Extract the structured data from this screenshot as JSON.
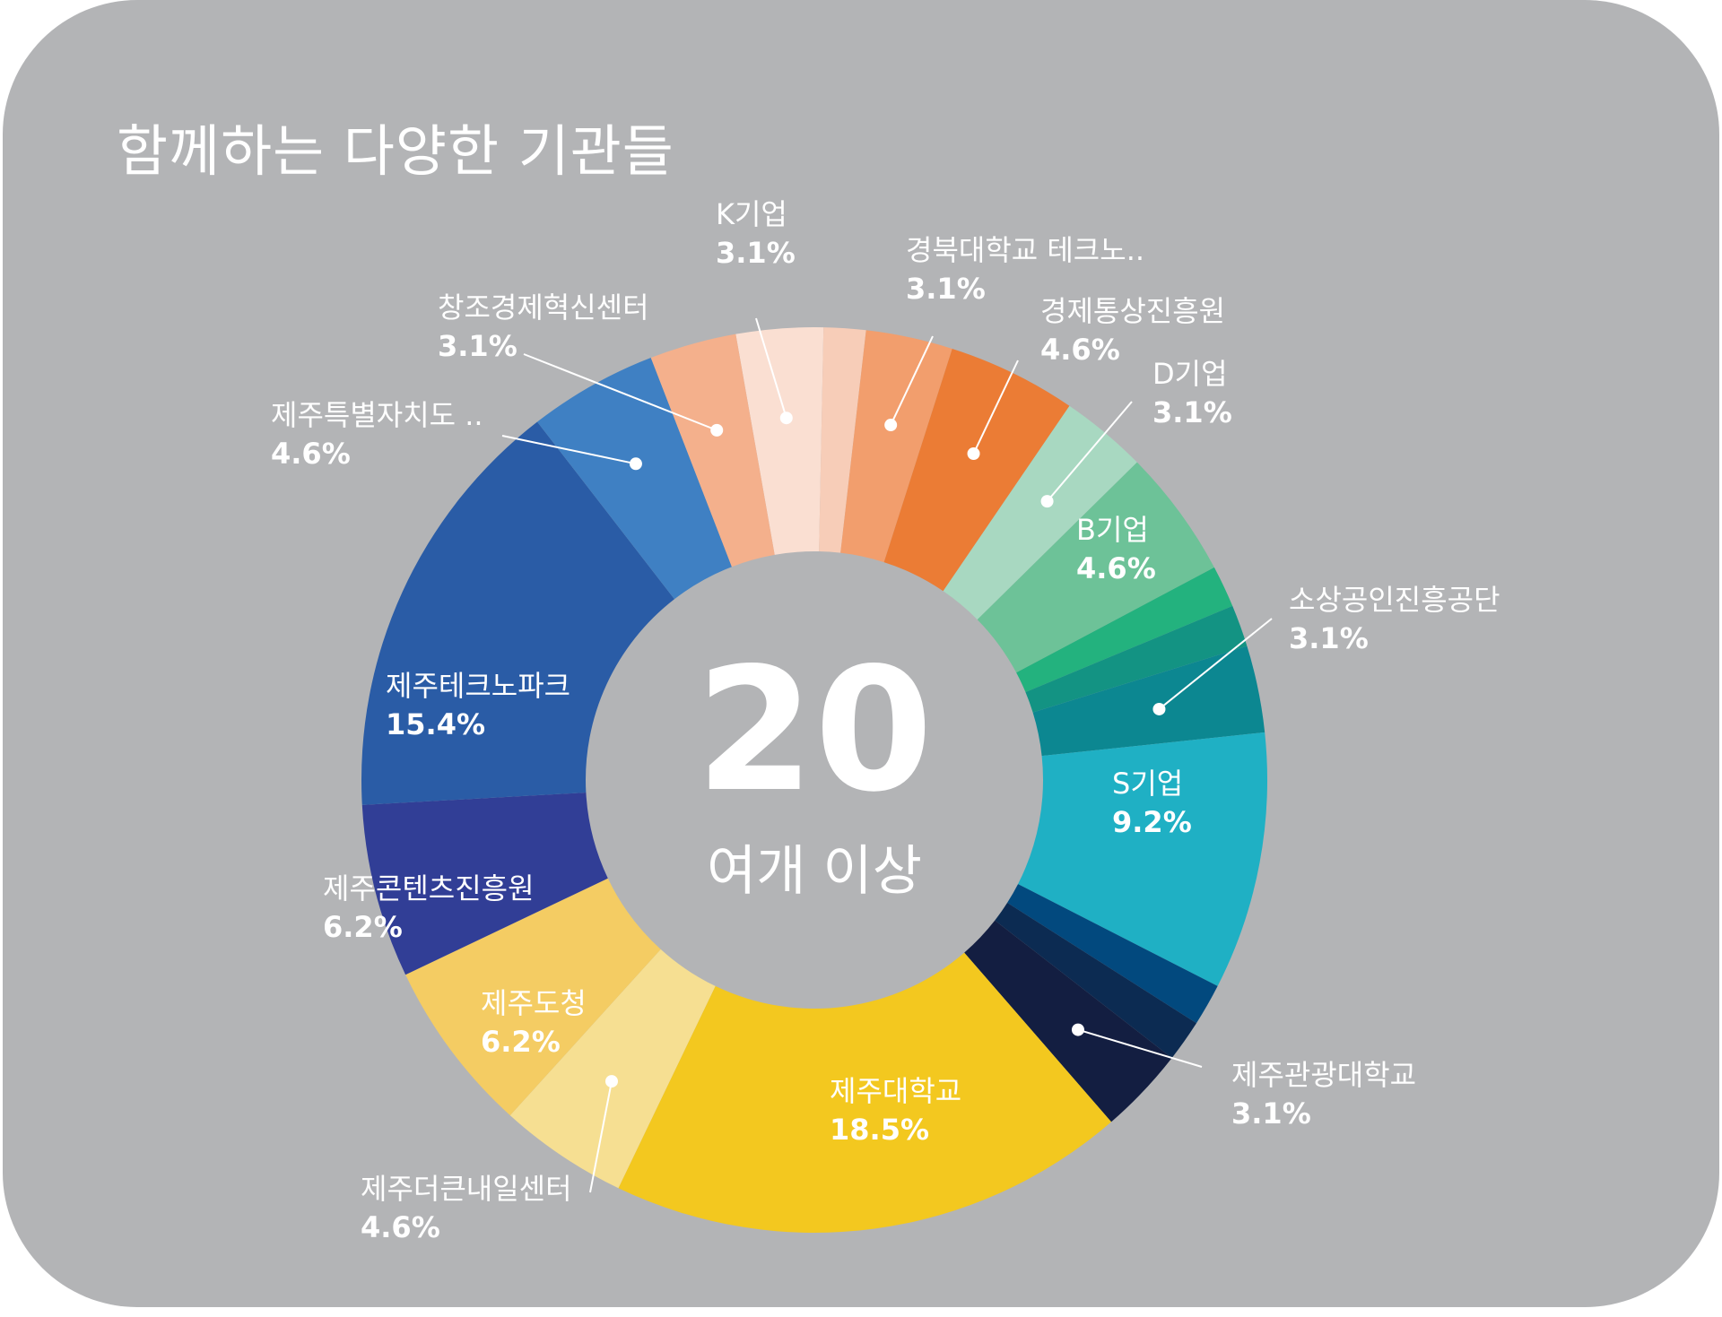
{
  "title": "함께하는 다양한 기관들",
  "center": {
    "number": "20",
    "subtitle": "여개 이상"
  },
  "chart_data": {
    "type": "pie",
    "variant": "donut",
    "title": "함께하는 다양한 기관들",
    "slices": [
      {
        "label": "K기업",
        "value": 3.1,
        "pct_label": "3.1%",
        "color": "#fadfd2"
      },
      {
        "label": "",
        "value": 1.5,
        "pct_label": "",
        "color": "#f7cdb8"
      },
      {
        "label": "경북대학교 테크노..",
        "value": 3.1,
        "pct_label": "3.1%",
        "color": "#f29e6d"
      },
      {
        "label": "경제통상진흥원",
        "value": 4.6,
        "pct_label": "4.6%",
        "color": "#eb7c35"
      },
      {
        "label": "D기업",
        "value": 3.1,
        "pct_label": "3.1%",
        "color": "#a8d8c1"
      },
      {
        "label": "B기업",
        "value": 4.6,
        "pct_label": "4.6%",
        "color": "#6dc298"
      },
      {
        "label": "",
        "value": 1.5,
        "pct_label": "",
        "color": "#23b27e"
      },
      {
        "label": "",
        "value": 1.5,
        "pct_label": "",
        "color": "#139383"
      },
      {
        "label": "소상공인진흥공단",
        "value": 3.1,
        "pct_label": "3.1%",
        "color": "#0c8791"
      },
      {
        "label": "S기업",
        "value": 9.2,
        "pct_label": "9.2%",
        "color": "#1fb0c4"
      },
      {
        "label": "",
        "value": 1.5,
        "pct_label": "",
        "color": "#02497e"
      },
      {
        "label": "",
        "value": 1.5,
        "pct_label": "",
        "color": "#0c2b52"
      },
      {
        "label": "제주관광대학교",
        "value": 3.1,
        "pct_label": "3.1%",
        "color": "#131e41"
      },
      {
        "label": "제주대학교",
        "value": 18.5,
        "pct_label": "18.5%",
        "color": "#f3c81f"
      },
      {
        "label": "제주더큰내일센터",
        "value": 4.6,
        "pct_label": "4.6%",
        "color": "#f6df92"
      },
      {
        "label": "제주도청",
        "value": 6.2,
        "pct_label": "6.2%",
        "color": "#f4cc63"
      },
      {
        "label": "제주콘텐츠진흥원",
        "value": 6.2,
        "pct_label": "6.2%",
        "color": "#313e96"
      },
      {
        "label": "제주테크노파크",
        "value": 15.4,
        "pct_label": "15.4%",
        "color": "#2a5ca6"
      },
      {
        "label": "제주특별자치도 ..",
        "value": 4.6,
        "pct_label": "4.6%",
        "color": "#3f80c3"
      },
      {
        "label": "창조경제혁신센터",
        "value": 3.1,
        "pct_label": "3.1%",
        "color": "#f4b08c"
      }
    ]
  }
}
